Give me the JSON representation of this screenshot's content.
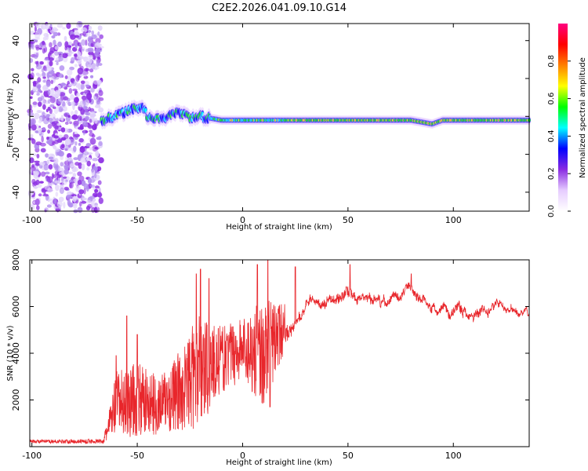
{
  "figure_title": "C2E2.2026.041.09.10.G14",
  "chart_data": [
    {
      "type": "heatmap",
      "title": "C2E2.2026.041.09.10.G14",
      "xlabel": "Height of straight line (km)",
      "ylabel": "Frequency (Hz)",
      "xlim": [
        -101,
        136
      ],
      "ylim": [
        -50,
        49
      ],
      "xticks": [
        -100,
        -50,
        0,
        50,
        100
      ],
      "xtick_labels": [
        "-100",
        "-50",
        "0",
        "50",
        "100"
      ],
      "yticks": [
        -40,
        -20,
        0,
        20,
        40
      ],
      "ytick_labels": [
        "-40",
        "-20",
        "0",
        "20",
        "40"
      ],
      "colorbar": {
        "label": "Normalized spectral amplitude",
        "range": [
          0,
          1
        ],
        "ticks": [
          0.0,
          0.2,
          0.4,
          0.6,
          0.8
        ],
        "tick_labels": [
          "0.0",
          "0.2",
          "0.4",
          "0.6",
          "0.8"
        ],
        "colormap": [
          "#ffffff",
          "#e6ccff",
          "#8a2be2",
          "#0000ff",
          "#00ffff",
          "#00ff00",
          "#ffff00",
          "#ff8000",
          "#ff0000",
          "#ff0080"
        ]
      },
      "noise_region_km": [
        -101,
        -67
      ],
      "ridge": [
        {
          "x": -67,
          "y": -2
        },
        {
          "x": -60,
          "y": 0
        },
        {
          "x": -55,
          "y": 3
        },
        {
          "x": -48,
          "y": 5
        },
        {
          "x": -45,
          "y": 0
        },
        {
          "x": -40,
          "y": -1
        },
        {
          "x": -35,
          "y": 0
        },
        {
          "x": -30,
          "y": 2
        },
        {
          "x": -25,
          "y": -1
        },
        {
          "x": -20,
          "y": 0
        },
        {
          "x": -15,
          "y": -1
        },
        {
          "x": -10,
          "y": -2
        },
        {
          "x": 0,
          "y": -2
        },
        {
          "x": 10,
          "y": -2
        },
        {
          "x": 30,
          "y": -2
        },
        {
          "x": 60,
          "y": -2
        },
        {
          "x": 80,
          "y": -2
        },
        {
          "x": 90,
          "y": -4
        },
        {
          "x": 95,
          "y": -2
        },
        {
          "x": 136,
          "y": -2
        }
      ]
    },
    {
      "type": "line",
      "xlabel": "Height of straight line (km)",
      "ylabel": "SNR (10 * v/v)",
      "xlim": [
        -101,
        136
      ],
      "ylim": [
        0,
        8000
      ],
      "xticks": [
        -100,
        -50,
        0,
        50,
        100
      ],
      "xtick_labels": [
        "-100",
        "-50",
        "0",
        "50",
        "100"
      ],
      "yticks": [
        2000,
        4000,
        6000,
        8000
      ],
      "ytick_labels": [
        "2000",
        "4000",
        "6000",
        "8000"
      ],
      "color": "#e8262b",
      "envelope": [
        {
          "x": -101,
          "base": 200,
          "spread": 150
        },
        {
          "x": -66,
          "base": 200,
          "spread": 200
        },
        {
          "x": -60,
          "base": 1400,
          "spread": 2800
        },
        {
          "x": -50,
          "base": 1500,
          "spread": 3300
        },
        {
          "x": -40,
          "base": 1400,
          "spread": 2500
        },
        {
          "x": -30,
          "base": 1800,
          "spread": 3500
        },
        {
          "x": -20,
          "base": 2600,
          "spread": 5000
        },
        {
          "x": -10,
          "base": 3300,
          "spread": 2800
        },
        {
          "x": 0,
          "base": 3800,
          "spread": 2800
        },
        {
          "x": 10,
          "base": 3300,
          "spread": 4700
        },
        {
          "x": 20,
          "base": 4800,
          "spread": 2000
        },
        {
          "x": 30,
          "base": 6200,
          "spread": 900
        },
        {
          "x": 40,
          "base": 6200,
          "spread": 900
        },
        {
          "x": 50,
          "base": 6600,
          "spread": 1200
        },
        {
          "x": 60,
          "base": 6100,
          "spread": 800
        },
        {
          "x": 70,
          "base": 6200,
          "spread": 800
        },
        {
          "x": 80,
          "base": 6800,
          "spread": 900
        },
        {
          "x": 90,
          "base": 5900,
          "spread": 900
        },
        {
          "x": 100,
          "base": 5900,
          "spread": 1000
        },
        {
          "x": 110,
          "base": 5800,
          "spread": 900
        },
        {
          "x": 120,
          "base": 6000,
          "spread": 800
        },
        {
          "x": 136,
          "base": 5600,
          "spread": 400
        }
      ],
      "peaks": [
        {
          "x": -60,
          "y": 3900
        },
        {
          "x": -55,
          "y": 5600
        },
        {
          "x": -50,
          "y": 4800
        },
        {
          "x": -22,
          "y": 7400
        },
        {
          "x": -20,
          "y": 7600
        },
        {
          "x": -16,
          "y": 7200
        },
        {
          "x": 7,
          "y": 7800
        },
        {
          "x": 12,
          "y": 8000
        },
        {
          "x": 13,
          "y": 1700
        },
        {
          "x": 25,
          "y": 7700
        },
        {
          "x": 51,
          "y": 7800
        },
        {
          "x": 80,
          "y": 7400
        }
      ]
    }
  ]
}
